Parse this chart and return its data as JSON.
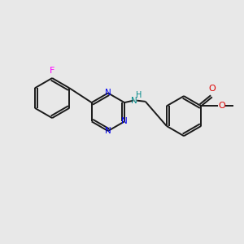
{
  "bg_color": "#e8e8e8",
  "bond_color": "#1a1a1a",
  "bond_width": 1.4,
  "N_color": "#0000ee",
  "F_color": "#ff00ff",
  "O_color": "#dd0000",
  "NH_color": "#008888",
  "figsize": [
    3.0,
    3.0
  ],
  "dpi": 100,
  "xlim": [
    0,
    12
  ],
  "ylim": [
    0,
    12
  ],
  "font_size": 7.5
}
